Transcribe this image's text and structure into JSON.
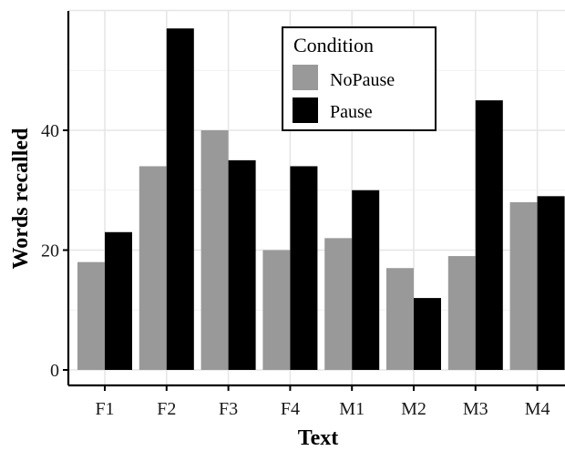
{
  "chart_data": {
    "type": "bar",
    "categories": [
      "F1",
      "F2",
      "F3",
      "F4",
      "M1",
      "M2",
      "M3",
      "M4"
    ],
    "series": [
      {
        "name": "NoPause",
        "values": [
          18,
          34,
          40,
          20,
          22,
          17,
          19,
          28
        ],
        "color": "#999999"
      },
      {
        "name": "Pause",
        "values": [
          23,
          57,
          35,
          34,
          30,
          12,
          45,
          29
        ],
        "color": "#000000"
      }
    ],
    "title": "",
    "xlabel": "Text",
    "ylabel": "Words recalled",
    "ylim": [
      0,
      60
    ],
    "yticks": [
      0,
      20,
      40
    ],
    "grid": true,
    "legend": {
      "title": "Condition",
      "placement": "top-right inside"
    }
  }
}
